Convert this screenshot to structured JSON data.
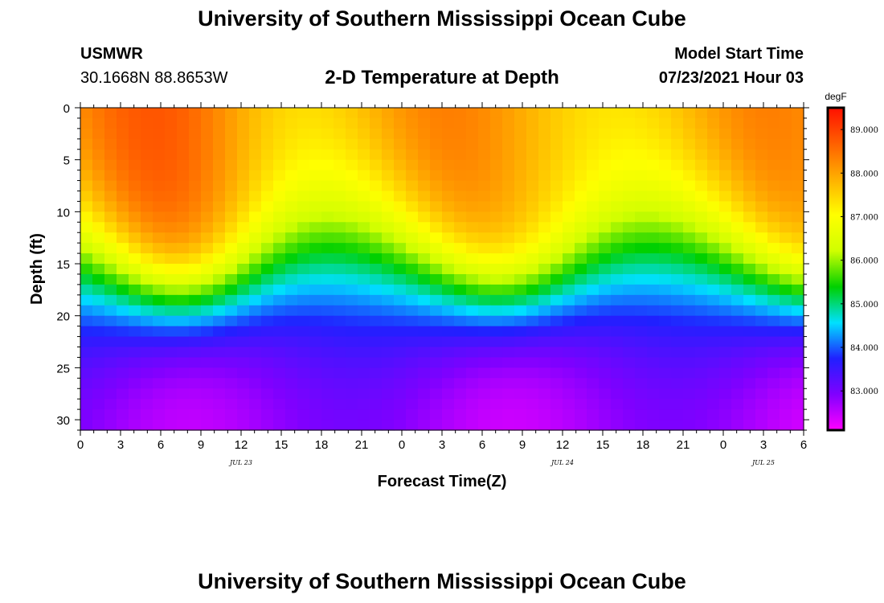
{
  "header": {
    "title": "University of Southern Mississippi Ocean Cube",
    "station": "USMWR",
    "coordinates": "30.1668N  88.8653W",
    "subtitle": "2-D Temperature at Depth",
    "start_label": "Model Start Time",
    "start_value": "07/23/2021 Hour 03"
  },
  "footer": {
    "title": "University of Southern Mississippi Ocean Cube"
  },
  "chart_data": {
    "type": "heatmap",
    "title": "2-D Temperature at Depth",
    "xlabel": "Forecast Time(Z)",
    "ylabel": "Depth (ft)",
    "x_ticks": [
      "0",
      "3",
      "6",
      "9",
      "12",
      "15",
      "18",
      "21",
      "0",
      "3",
      "6",
      "9",
      "12",
      "15",
      "18",
      "21",
      "0",
      "3",
      "6"
    ],
    "x_tick_hours": [
      0,
      3,
      6,
      9,
      12,
      15,
      18,
      21,
      24,
      27,
      30,
      33,
      36,
      39,
      42,
      45,
      48,
      51,
      54
    ],
    "date_labels": [
      {
        "label": "JUL 23",
        "hour": 12
      },
      {
        "label": "JUL 24",
        "hour": 36
      },
      {
        "label": "JUL 25",
        "hour": 51
      }
    ],
    "xlim": [
      0,
      54
    ],
    "y_ticks": [
      "0",
      "5",
      "10",
      "15",
      "20",
      "25",
      "30"
    ],
    "y_tick_values": [
      0,
      5,
      10,
      15,
      20,
      25,
      30
    ],
    "ylim": [
      0,
      31
    ],
    "y_inverted": true,
    "colorbar": {
      "unit": "degF",
      "min": 82.1,
      "max": 89.5,
      "labels": [
        "89.000",
        "88.000",
        "87.000",
        "86.000",
        "85.000",
        "84.000",
        "83.000"
      ],
      "label_values": [
        89,
        88,
        87,
        86,
        85,
        84,
        83
      ],
      "colors": [
        "#ff00ff",
        "#8000ff",
        "#2020ff",
        "#00e0ff",
        "#00d000",
        "#d0ff00",
        "#ffff00",
        "#ffb000",
        "#ff6000",
        "#ff1000"
      ]
    },
    "grid": false
  }
}
